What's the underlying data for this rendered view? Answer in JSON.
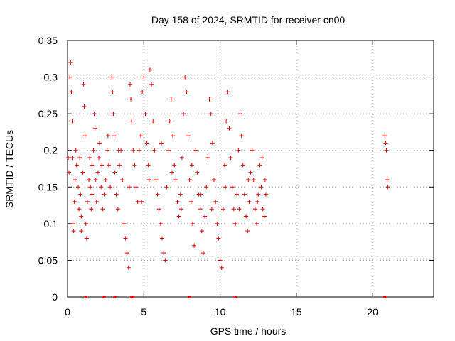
{
  "chart_data": {
    "type": "scatter",
    "title": "Day 158 of 2024, SRMTID for receiver cn00",
    "xlabel": "GPS time / hours",
    "ylabel": "SRMTID / TECUs",
    "xlim": [
      0,
      24
    ],
    "ylim": [
      0,
      0.35
    ],
    "xticks": [
      0,
      5,
      10,
      15,
      20
    ],
    "xtick_labels": [
      "0",
      "5",
      "10",
      "15",
      "20"
    ],
    "yticks": [
      0,
      0.05,
      0.1,
      0.15,
      0.2,
      0.25,
      0.3,
      0.35
    ],
    "ytick_labels": [
      "0",
      "0.05",
      "0.1",
      "0.15",
      "0.2",
      "0.25",
      "0.3",
      "0.35"
    ],
    "grid": true,
    "marker": "+",
    "color": "#e00000",
    "series": [
      {
        "name": "SRMTID",
        "points": [
          [
            0.05,
            0.19
          ],
          [
            0.1,
            0.17
          ],
          [
            0.15,
            0.3
          ],
          [
            0.2,
            0.32
          ],
          [
            0.25,
            0.28
          ],
          [
            0.3,
            0.24
          ],
          [
            0.35,
            0.1
          ],
          [
            0.4,
            0.09
          ],
          [
            0.45,
            0.13
          ],
          [
            0.5,
            0.16
          ],
          [
            0.55,
            0.2
          ],
          [
            0.6,
            0.18
          ],
          [
            0.7,
            0.15
          ],
          [
            0.75,
            0.12
          ],
          [
            0.8,
            0.19
          ],
          [
            0.85,
            0.14
          ],
          [
            0.9,
            0.11
          ],
          [
            1.0,
            0.17
          ],
          [
            1.05,
            0.29
          ],
          [
            1.1,
            0.26
          ],
          [
            1.15,
            0.22
          ],
          [
            1.2,
            0.1
          ],
          [
            1.25,
            0.08
          ],
          [
            1.3,
            0.13
          ],
          [
            1.4,
            0.16
          ],
          [
            1.45,
            0.19
          ],
          [
            1.5,
            0.15
          ],
          [
            1.55,
            0.12
          ],
          [
            1.6,
            0.18
          ],
          [
            1.7,
            0.2
          ],
          [
            1.75,
            0.25
          ],
          [
            1.8,
            0.23
          ],
          [
            1.85,
            0.16
          ],
          [
            1.9,
            0.13
          ],
          [
            2.0,
            0.17
          ],
          [
            2.05,
            0.19
          ],
          [
            2.1,
            0.21
          ],
          [
            2.2,
            0.15
          ],
          [
            2.3,
            0.12
          ],
          [
            2.4,
            0.14
          ],
          [
            2.5,
            0.16
          ],
          [
            2.6,
            0.2
          ],
          [
            2.65,
            0.22
          ],
          [
            2.7,
            0.18
          ],
          [
            2.8,
            0.15
          ],
          [
            2.9,
            0.3
          ],
          [
            2.95,
            0.28
          ],
          [
            3.0,
            0.25
          ],
          [
            3.05,
            0.22
          ],
          [
            3.1,
            0.17
          ],
          [
            3.2,
            0.14
          ],
          [
            3.3,
            0.12
          ],
          [
            3.4,
            0.18
          ],
          [
            3.5,
            0.2
          ],
          [
            3.6,
            0.16
          ],
          [
            3.7,
            0.1
          ],
          [
            3.8,
            0.08
          ],
          [
            3.9,
            0.06
          ],
          [
            4.0,
            0.04
          ],
          [
            4.1,
            0.29
          ],
          [
            4.15,
            0.27
          ],
          [
            4.2,
            0.24
          ],
          [
            4.3,
            0.2
          ],
          [
            4.4,
            0.18
          ],
          [
            4.5,
            0.15
          ],
          [
            4.6,
            0.13
          ],
          [
            4.7,
            0.2
          ],
          [
            4.8,
            0.22
          ],
          [
            4.9,
            0.28
          ],
          [
            5.0,
            0.3
          ],
          [
            5.1,
            0.25
          ],
          [
            5.2,
            0.21
          ],
          [
            5.3,
            0.18
          ],
          [
            5.4,
            0.31
          ],
          [
            5.5,
            0.29
          ],
          [
            5.6,
            0.24
          ],
          [
            5.7,
            0.2
          ],
          [
            5.8,
            0.16
          ],
          [
            5.9,
            0.14
          ],
          [
            6.0,
            0.12
          ],
          [
            6.1,
            0.1
          ],
          [
            6.2,
            0.08
          ],
          [
            6.3,
            0.06
          ],
          [
            6.4,
            0.05
          ],
          [
            6.5,
            0.15
          ],
          [
            6.6,
            0.2
          ],
          [
            6.7,
            0.24
          ],
          [
            6.8,
            0.27
          ],
          [
            6.9,
            0.22
          ],
          [
            7.0,
            0.18
          ],
          [
            7.1,
            0.16
          ],
          [
            7.2,
            0.13
          ],
          [
            7.3,
            0.11
          ],
          [
            7.4,
            0.14
          ],
          [
            7.5,
            0.19
          ],
          [
            7.6,
            0.25
          ],
          [
            7.7,
            0.3
          ],
          [
            7.8,
            0.28
          ],
          [
            7.9,
            0.22
          ],
          [
            8.0,
            0.16
          ],
          [
            8.1,
            0.13
          ],
          [
            8.2,
            0.1
          ],
          [
            8.3,
            0.07
          ],
          [
            8.4,
            0.2
          ],
          [
            8.5,
            0.17
          ],
          [
            8.6,
            0.14
          ],
          [
            8.7,
            0.12
          ],
          [
            8.8,
            0.09
          ],
          [
            8.9,
            0.06
          ],
          [
            9.0,
            0.11
          ],
          [
            9.1,
            0.15
          ],
          [
            9.2,
            0.19
          ],
          [
            9.3,
            0.27
          ],
          [
            9.4,
            0.25
          ],
          [
            9.5,
            0.21
          ],
          [
            9.6,
            0.16
          ],
          [
            9.7,
            0.13
          ],
          [
            9.8,
            0.1
          ],
          [
            9.9,
            0.08
          ],
          [
            10.0,
            0.05
          ],
          [
            10.1,
            0.04
          ],
          [
            10.2,
            0.12
          ],
          [
            10.3,
            0.18
          ],
          [
            10.4,
            0.24
          ],
          [
            10.5,
            0.28
          ],
          [
            10.6,
            0.23
          ],
          [
            10.7,
            0.19
          ],
          [
            10.8,
            0.15
          ],
          [
            10.9,
            0.12
          ],
          [
            11.0,
            0.1
          ],
          [
            11.1,
            0.14
          ],
          [
            11.2,
            0.2
          ],
          [
            11.3,
            0.25
          ],
          [
            11.4,
            0.22
          ],
          [
            11.5,
            0.18
          ],
          [
            11.6,
            0.14
          ],
          [
            11.7,
            0.11
          ],
          [
            11.8,
            0.09
          ],
          [
            11.9,
            0.13
          ],
          [
            12.0,
            0.17
          ],
          [
            12.1,
            0.2
          ],
          [
            12.2,
            0.16
          ],
          [
            12.3,
            0.12
          ],
          [
            12.4,
            0.1
          ],
          [
            12.5,
            0.14
          ],
          [
            12.6,
            0.18
          ],
          [
            12.7,
            0.15
          ],
          [
            12.8,
            0.12
          ],
          [
            12.9,
            0.11
          ],
          [
            13.0,
            0.14
          ],
          [
            0.3,
            0.19
          ],
          [
            0.9,
            0.09
          ],
          [
            1.6,
            0.14
          ],
          [
            2.25,
            0.18
          ],
          [
            3.35,
            0.2
          ],
          [
            4.05,
            0.15
          ],
          [
            4.85,
            0.13
          ],
          [
            5.35,
            0.16
          ],
          [
            6.15,
            0.21
          ],
          [
            6.85,
            0.17
          ],
          [
            7.45,
            0.12
          ],
          [
            8.15,
            0.18
          ],
          [
            8.75,
            0.14
          ],
          [
            9.45,
            0.12
          ],
          [
            10.35,
            0.15
          ],
          [
            11.25,
            0.12
          ],
          [
            11.85,
            0.16
          ],
          [
            12.45,
            0.13
          ],
          [
            12.75,
            0.19
          ],
          [
            12.95,
            0.16
          ],
          [
            20.8,
            0.22
          ],
          [
            20.85,
            0.21
          ],
          [
            20.9,
            0.2
          ],
          [
            20.95,
            0.16
          ],
          [
            21.0,
            0.15
          ]
        ]
      }
    ],
    "zero_markers": [
      1.2,
      2.4,
      3.1,
      4.2,
      4.3,
      8.0,
      11.0,
      20.8
    ]
  }
}
